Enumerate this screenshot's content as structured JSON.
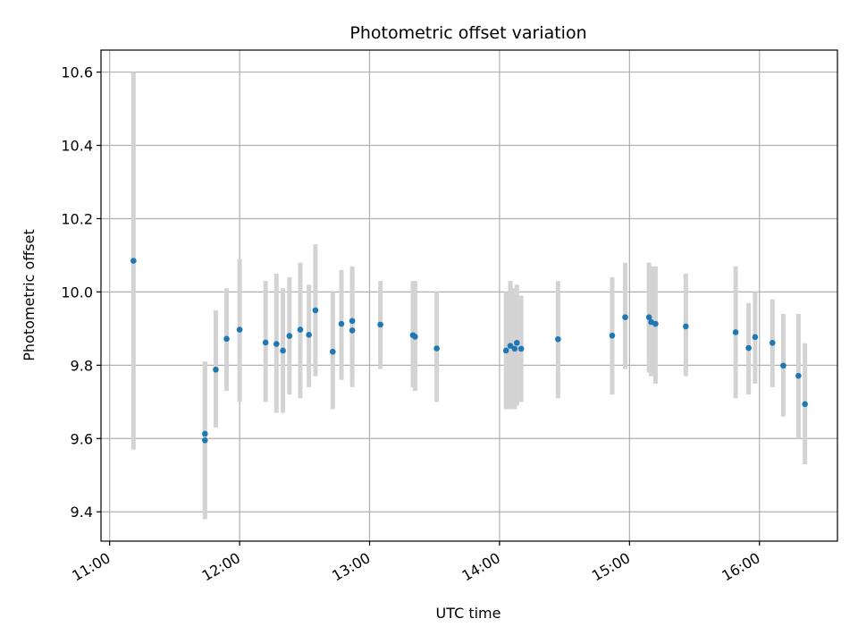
{
  "chart_data": {
    "type": "scatter",
    "title": "Photometric offset variation",
    "xlabel": "UTC time",
    "ylabel": "Photometric offset",
    "x_ticks": [
      "11:00",
      "12:00",
      "13:00",
      "14:00",
      "15:00",
      "16:00"
    ],
    "y_ticks": [
      "9.4",
      "9.6",
      "9.8",
      "10.0",
      "10.2",
      "10.4",
      "10.6"
    ],
    "xlim": [
      "10:56",
      "16:36"
    ],
    "ylim": [
      9.32,
      10.66
    ],
    "grid": true,
    "colors": {
      "point": "#1f77b4",
      "errorbar": "#d3d3d3",
      "grid": "#b0b0b0"
    },
    "points": [
      {
        "x": "11:11",
        "y": 10.085,
        "lo": 9.57,
        "hi": 10.6
      },
      {
        "x": "11:44",
        "y": 9.613,
        "lo": 9.39,
        "hi": 9.81
      },
      {
        "x": "11:44",
        "y": 9.595,
        "lo": 9.38,
        "hi": 9.81
      },
      {
        "x": "11:49",
        "y": 9.788,
        "lo": 9.63,
        "hi": 9.95
      },
      {
        "x": "11:54",
        "y": 9.872,
        "lo": 9.73,
        "hi": 10.01
      },
      {
        "x": "12:00",
        "y": 9.897,
        "lo": 9.7,
        "hi": 10.09
      },
      {
        "x": "12:12",
        "y": 9.862,
        "lo": 9.7,
        "hi": 10.03
      },
      {
        "x": "12:17",
        "y": 9.858,
        "lo": 9.67,
        "hi": 10.05
      },
      {
        "x": "12:20",
        "y": 9.84,
        "lo": 9.67,
        "hi": 10.01
      },
      {
        "x": "12:23",
        "y": 9.88,
        "lo": 9.72,
        "hi": 10.04
      },
      {
        "x": "12:28",
        "y": 9.897,
        "lo": 9.71,
        "hi": 10.08
      },
      {
        "x": "12:32",
        "y": 9.883,
        "lo": 9.74,
        "hi": 10.02
      },
      {
        "x": "12:35",
        "y": 9.95,
        "lo": 9.77,
        "hi": 10.13
      },
      {
        "x": "12:43",
        "y": 9.837,
        "lo": 9.68,
        "hi": 10.0
      },
      {
        "x": "12:47",
        "y": 9.913,
        "lo": 9.76,
        "hi": 10.06
      },
      {
        "x": "12:52",
        "y": 9.921,
        "lo": 9.77,
        "hi": 10.07
      },
      {
        "x": "12:52",
        "y": 9.895,
        "lo": 9.74,
        "hi": 10.05
      },
      {
        "x": "13:05",
        "y": 9.911,
        "lo": 9.79,
        "hi": 10.03
      },
      {
        "x": "13:20",
        "y": 9.882,
        "lo": 9.74,
        "hi": 10.03
      },
      {
        "x": "13:21",
        "y": 9.878,
        "lo": 9.73,
        "hi": 10.03
      },
      {
        "x": "13:31",
        "y": 9.846,
        "lo": 9.7,
        "hi": 10.0
      },
      {
        "x": "14:03",
        "y": 9.84,
        "lo": 9.68,
        "hi": 10.0
      },
      {
        "x": "14:05",
        "y": 9.853,
        "lo": 9.68,
        "hi": 10.03
      },
      {
        "x": "14:07",
        "y": 9.845,
        "lo": 9.68,
        "hi": 10.01
      },
      {
        "x": "14:08",
        "y": 9.861,
        "lo": 9.69,
        "hi": 10.02
      },
      {
        "x": "14:10",
        "y": 9.845,
        "lo": 9.7,
        "hi": 9.99
      },
      {
        "x": "14:27",
        "y": 9.871,
        "lo": 9.71,
        "hi": 10.03
      },
      {
        "x": "14:52",
        "y": 9.881,
        "lo": 9.72,
        "hi": 10.04
      },
      {
        "x": "14:58",
        "y": 9.931,
        "lo": 9.79,
        "hi": 10.08
      },
      {
        "x": "15:09",
        "y": 9.931,
        "lo": 9.78,
        "hi": 10.08
      },
      {
        "x": "15:10",
        "y": 9.918,
        "lo": 9.77,
        "hi": 10.07
      },
      {
        "x": "15:12",
        "y": 9.913,
        "lo": 9.75,
        "hi": 10.07
      },
      {
        "x": "15:26",
        "y": 9.906,
        "lo": 9.77,
        "hi": 10.05
      },
      {
        "x": "15:49",
        "y": 9.89,
        "lo": 9.71,
        "hi": 10.07
      },
      {
        "x": "15:55",
        "y": 9.847,
        "lo": 9.72,
        "hi": 9.97
      },
      {
        "x": "15:58",
        "y": 9.877,
        "lo": 9.75,
        "hi": 10.0
      },
      {
        "x": "16:06",
        "y": 9.861,
        "lo": 9.74,
        "hi": 9.98
      },
      {
        "x": "16:11",
        "y": 9.799,
        "lo": 9.66,
        "hi": 9.94
      },
      {
        "x": "16:18",
        "y": 9.771,
        "lo": 9.6,
        "hi": 9.94
      },
      {
        "x": "16:21",
        "y": 9.694,
        "lo": 9.53,
        "hi": 9.86
      }
    ]
  }
}
